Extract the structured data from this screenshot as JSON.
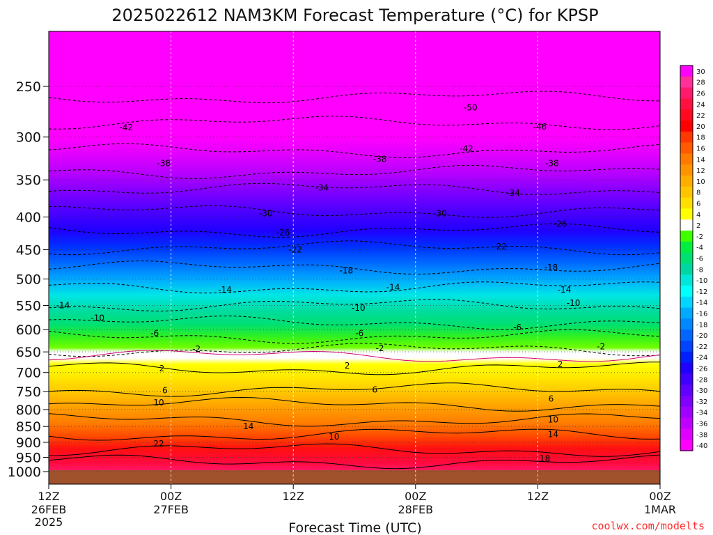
{
  "chart_data": {
    "type": "heatmap",
    "title": "2025022612 NAM3KM Forecast Temperature (°C) for KPSP",
    "xlabel": "Forecast Time (UTC)",
    "ylabel": "",
    "credit": "coolwx.com/modelts",
    "y_ticks": [
      "250",
      "300",
      "350",
      "400",
      "450",
      "500",
      "550",
      "600",
      "650",
      "700",
      "750",
      "800",
      "850",
      "900",
      "950",
      "1000"
    ],
    "y_values": [
      250,
      300,
      350,
      400,
      450,
      500,
      550,
      600,
      650,
      700,
      750,
      800,
      850,
      900,
      950,
      1000
    ],
    "ylim": [
      1000,
      200
    ],
    "y_scale": "log pressure",
    "x_ticks": [
      {
        "hour": "12Z",
        "date": "26FEB",
        "year": "2025"
      },
      {
        "hour": "00Z",
        "date": "27FEB",
        "year": ""
      },
      {
        "hour": "12Z",
        "date": "",
        "year": ""
      },
      {
        "hour": "00Z",
        "date": "28FEB",
        "year": ""
      },
      {
        "hour": "12Z",
        "date": "",
        "year": ""
      },
      {
        "hour": "00Z",
        "date": "1MAR",
        "year": ""
      }
    ],
    "x_hours": [
      0,
      12,
      24,
      36,
      48,
      60
    ],
    "xlim": [
      0,
      60
    ],
    "colorbar_labels": [
      "30",
      "28",
      "26",
      "24",
      "22",
      "20",
      "18",
      "16",
      "14",
      "12",
      "10",
      "8",
      "6",
      "4",
      "2",
      "-2",
      "-4",
      "-6",
      "-8",
      "-10",
      "-12",
      "-14",
      "-16",
      "-18",
      "-20",
      "-22",
      "-24",
      "-26",
      "-28",
      "-30",
      "-32",
      "-34",
      "-36",
      "-38",
      "-40"
    ],
    "colorbar_colors": [
      "#ff00ff",
      "#ff3099",
      "#ff1a6b",
      "#ff1040",
      "#ff0a20",
      "#ff0000",
      "#ff3800",
      "#ff5a00",
      "#ff7a00",
      "#ff9400",
      "#ffae00",
      "#ffc600",
      "#ffde00",
      "#ffff00",
      "#ffffff",
      "#40ff00",
      "#00ee40",
      "#00e070",
      "#00d6a0",
      "#00e6d8",
      "#00ffff",
      "#00d6ff",
      "#00aaff",
      "#0088ff",
      "#0066ff",
      "#0044ff",
      "#0020ff",
      "#2000ff",
      "#4000ff",
      "#6000ff",
      "#8000ff",
      "#a000ff",
      "#c000ff",
      "#e000ff",
      "#ff00ff"
    ],
    "ground_color": "#a0522d",
    "contour_labels": [
      {
        "text": "-50",
        "x": 41.4,
        "y": 270
      },
      {
        "text": "-46",
        "x": 48.2,
        "y": 289
      },
      {
        "text": "-42",
        "x": 7.6,
        "y": 290
      },
      {
        "text": "-42",
        "x": 41.0,
        "y": 313
      },
      {
        "text": "-38",
        "x": 11.3,
        "y": 330
      },
      {
        "text": "-38",
        "x": 32.5,
        "y": 325
      },
      {
        "text": "-38",
        "x": 49.4,
        "y": 330
      },
      {
        "text": "-34",
        "x": 26.8,
        "y": 360
      },
      {
        "text": "-34",
        "x": 45.6,
        "y": 367
      },
      {
        "text": "-30",
        "x": 21.3,
        "y": 395
      },
      {
        "text": "-30",
        "x": 38.4,
        "y": 395
      },
      {
        "text": "-26",
        "x": 23.0,
        "y": 423
      },
      {
        "text": "-26",
        "x": 50.2,
        "y": 410
      },
      {
        "text": "-22",
        "x": 24.2,
        "y": 450
      },
      {
        "text": "-22",
        "x": 44.3,
        "y": 445
      },
      {
        "text": "-18",
        "x": 29.2,
        "y": 485
      },
      {
        "text": "-18",
        "x": 49.3,
        "y": 480
      },
      {
        "text": "-14",
        "x": 1.4,
        "y": 550
      },
      {
        "text": "-14",
        "x": 17.3,
        "y": 520
      },
      {
        "text": "-14",
        "x": 33.8,
        "y": 515
      },
      {
        "text": "-14",
        "x": 50.6,
        "y": 520
      },
      {
        "text": "-10",
        "x": 4.8,
        "y": 575
      },
      {
        "text": "-10",
        "x": 30.4,
        "y": 555
      },
      {
        "text": "-10",
        "x": 51.5,
        "y": 545
      },
      {
        "text": "-6",
        "x": 10.4,
        "y": 608
      },
      {
        "text": "-6",
        "x": 30.5,
        "y": 608
      },
      {
        "text": "-6",
        "x": 46.0,
        "y": 595
      },
      {
        "text": "-2",
        "x": 14.5,
        "y": 643
      },
      {
        "text": "-2",
        "x": 32.5,
        "y": 642
      },
      {
        "text": "-2",
        "x": 54.2,
        "y": 638
      },
      {
        "text": "2",
        "x": 11.1,
        "y": 690
      },
      {
        "text": "2",
        "x": 29.3,
        "y": 683
      },
      {
        "text": "2",
        "x": 50.2,
        "y": 680
      },
      {
        "text": "6",
        "x": 11.4,
        "y": 747
      },
      {
        "text": "6",
        "x": 32.0,
        "y": 745
      },
      {
        "text": "6",
        "x": 49.3,
        "y": 770
      },
      {
        "text": "10",
        "x": 10.8,
        "y": 780
      },
      {
        "text": "10",
        "x": 28.0,
        "y": 882
      },
      {
        "text": "10",
        "x": 49.5,
        "y": 830
      },
      {
        "text": "14",
        "x": 19.6,
        "y": 850
      },
      {
        "text": "14",
        "x": 49.5,
        "y": 875
      },
      {
        "text": "18",
        "x": 48.7,
        "y": 955
      },
      {
        "text": "22",
        "x": 10.8,
        "y": 905
      }
    ]
  }
}
